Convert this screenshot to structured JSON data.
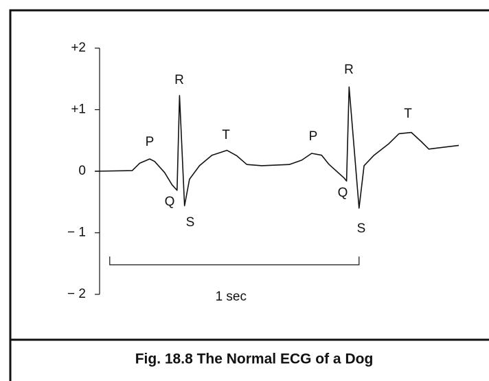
{
  "chart_data": {
    "type": "line",
    "caption": "Fig. 18.8 The Normal ECG of a Dog",
    "x": [
      -0.06,
      0.09,
      0.12,
      0.16,
      0.18,
      0.22,
      0.25,
      0.27,
      0.28,
      0.3,
      0.32,
      0.36,
      0.41,
      0.47,
      0.51,
      0.55,
      0.61,
      0.72,
      0.77,
      0.81,
      0.85,
      0.88,
      0.94,
      0.95,
      0.96,
      1.0,
      1.02,
      1.06,
      1.12,
      1.16,
      1.21,
      1.25,
      1.28,
      1.4
    ],
    "values": [
      0,
      0.01,
      0.13,
      0.2,
      0.16,
      -0.02,
      -0.22,
      -0.31,
      1.23,
      -0.56,
      -0.13,
      0.09,
      0.26,
      0.34,
      0.25,
      0.11,
      0.09,
      0.11,
      0.18,
      0.29,
      0.26,
      0.11,
      -0.11,
      -0.16,
      1.37,
      -0.6,
      0.09,
      0.26,
      0.45,
      0.61,
      0.63,
      0.48,
      0.36,
      0.42
    ],
    "color": "#111111",
    "xlim": [
      -0.06,
      1.4
    ],
    "ylim": [
      -2,
      2
    ],
    "yticks": [
      {
        "value": -2,
        "label": "− 2"
      },
      {
        "value": -1,
        "label": "− 1"
      },
      0,
      {
        "value": 1,
        "label": "+1"
      },
      {
        "value": 2,
        "label": "+2"
      }
    ],
    "annotations": [
      "P",
      "Q",
      "R",
      "S",
      "T",
      "P",
      "Q",
      "R",
      "S",
      "T"
    ],
    "scale_bar": {
      "label": "1 sec",
      "value": 1
    }
  }
}
